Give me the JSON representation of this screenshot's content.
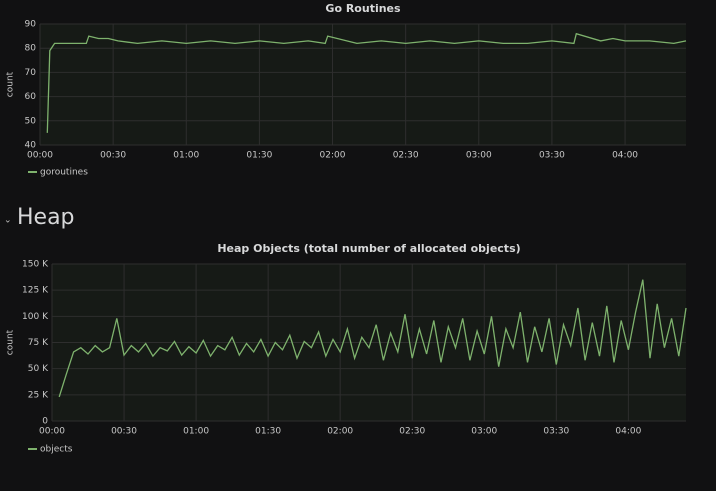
{
  "section_title": "Heap",
  "chart_data": [
    {
      "type": "line",
      "title": "Go Routines",
      "ylabel": "count",
      "x": [
        3,
        4,
        6,
        8,
        12,
        16,
        19,
        20,
        24,
        28,
        32,
        40,
        50,
        60,
        70,
        80,
        90,
        100,
        110,
        117,
        118,
        130,
        140,
        150,
        160,
        170,
        180,
        190,
        200,
        210,
        219,
        220,
        230,
        235,
        240,
        250,
        260,
        265
      ],
      "series": [
        {
          "name": "goroutines",
          "color": "#7eb26d",
          "values": [
            45,
            79,
            82,
            82,
            82,
            82,
            82,
            85,
            84,
            84,
            83,
            82,
            83,
            82,
            83,
            82,
            83,
            82,
            83,
            82,
            85,
            82,
            83,
            82,
            83,
            82,
            83,
            82,
            82,
            83,
            82,
            86,
            83,
            84,
            83,
            83,
            82,
            83
          ]
        }
      ],
      "xlim": [
        0,
        265
      ],
      "ylim": [
        40,
        90
      ],
      "xticks": [
        {
          "value": 0,
          "label": "00:00"
        },
        {
          "value": 30,
          "label": "00:30"
        },
        {
          "value": 60,
          "label": "01:00"
        },
        {
          "value": 90,
          "label": "01:30"
        },
        {
          "value": 120,
          "label": "02:00"
        },
        {
          "value": 150,
          "label": "02:30"
        },
        {
          "value": 180,
          "label": "03:00"
        },
        {
          "value": 210,
          "label": "03:30"
        },
        {
          "value": 240,
          "label": "04:00"
        }
      ],
      "yticks": [
        40,
        50,
        60,
        70,
        80,
        90
      ],
      "grid": true
    },
    {
      "type": "line",
      "title": "Heap Objects (total number of allocated objects)",
      "ylabel": "count",
      "x": [
        3,
        6,
        9,
        12,
        15,
        18,
        21,
        24,
        27,
        30,
        33,
        36,
        39,
        42,
        45,
        48,
        51,
        54,
        57,
        60,
        63,
        66,
        69,
        72,
        75,
        78,
        81,
        84,
        87,
        90,
        93,
        96,
        99,
        102,
        105,
        108,
        111,
        114,
        117,
        120,
        123,
        126,
        129,
        132,
        135,
        138,
        141,
        144,
        147,
        150,
        153,
        156,
        159,
        162,
        165,
        168,
        171,
        174,
        177,
        180,
        183,
        186,
        189,
        192,
        195,
        198,
        201,
        204,
        207,
        210,
        213,
        216,
        219,
        222,
        225,
        228,
        231,
        234,
        237,
        240,
        243,
        246,
        249,
        252,
        255,
        258,
        261,
        264
      ],
      "series": [
        {
          "name": "objects",
          "color": "#7eb26d",
          "values": [
            23000,
            45000,
            66000,
            70000,
            64000,
            72000,
            66000,
            70000,
            98000,
            63000,
            72000,
            66000,
            74000,
            62000,
            70000,
            67000,
            76000,
            63000,
            71000,
            65000,
            77000,
            62000,
            72000,
            68000,
            80000,
            63000,
            74000,
            66000,
            78000,
            62000,
            75000,
            68000,
            82000,
            60000,
            76000,
            70000,
            85000,
            62000,
            78000,
            66000,
            88000,
            60000,
            80000,
            70000,
            92000,
            58000,
            84000,
            66000,
            102000,
            60000,
            88000,
            64000,
            96000,
            56000,
            90000,
            70000,
            98000,
            58000,
            86000,
            64000,
            100000,
            52000,
            88000,
            70000,
            104000,
            56000,
            90000,
            66000,
            98000,
            54000,
            92000,
            72000,
            108000,
            58000,
            94000,
            62000,
            110000,
            56000,
            96000,
            68000,
            104000,
            135000,
            60000,
            112000,
            70000,
            98000,
            62000,
            108000
          ]
        }
      ],
      "xlim": [
        0,
        264
      ],
      "ylim": [
        0,
        150000
      ],
      "xticks": [
        {
          "value": 0,
          "label": "00:00"
        },
        {
          "value": 30,
          "label": "00:30"
        },
        {
          "value": 60,
          "label": "01:00"
        },
        {
          "value": 90,
          "label": "01:30"
        },
        {
          "value": 120,
          "label": "02:00"
        },
        {
          "value": 150,
          "label": "02:30"
        },
        {
          "value": 180,
          "label": "03:00"
        },
        {
          "value": 210,
          "label": "03:30"
        },
        {
          "value": 240,
          "label": "04:00"
        }
      ],
      "yticks": [
        0,
        {
          "value": 25000,
          "label": "25 K"
        },
        {
          "value": 50000,
          "label": "50 K"
        },
        {
          "value": 75000,
          "label": "75 K"
        },
        {
          "value": 100000,
          "label": "100 K"
        },
        {
          "value": 125000,
          "label": "125 K"
        },
        {
          "value": 150000,
          "label": "150 K"
        }
      ],
      "grid": true
    }
  ]
}
